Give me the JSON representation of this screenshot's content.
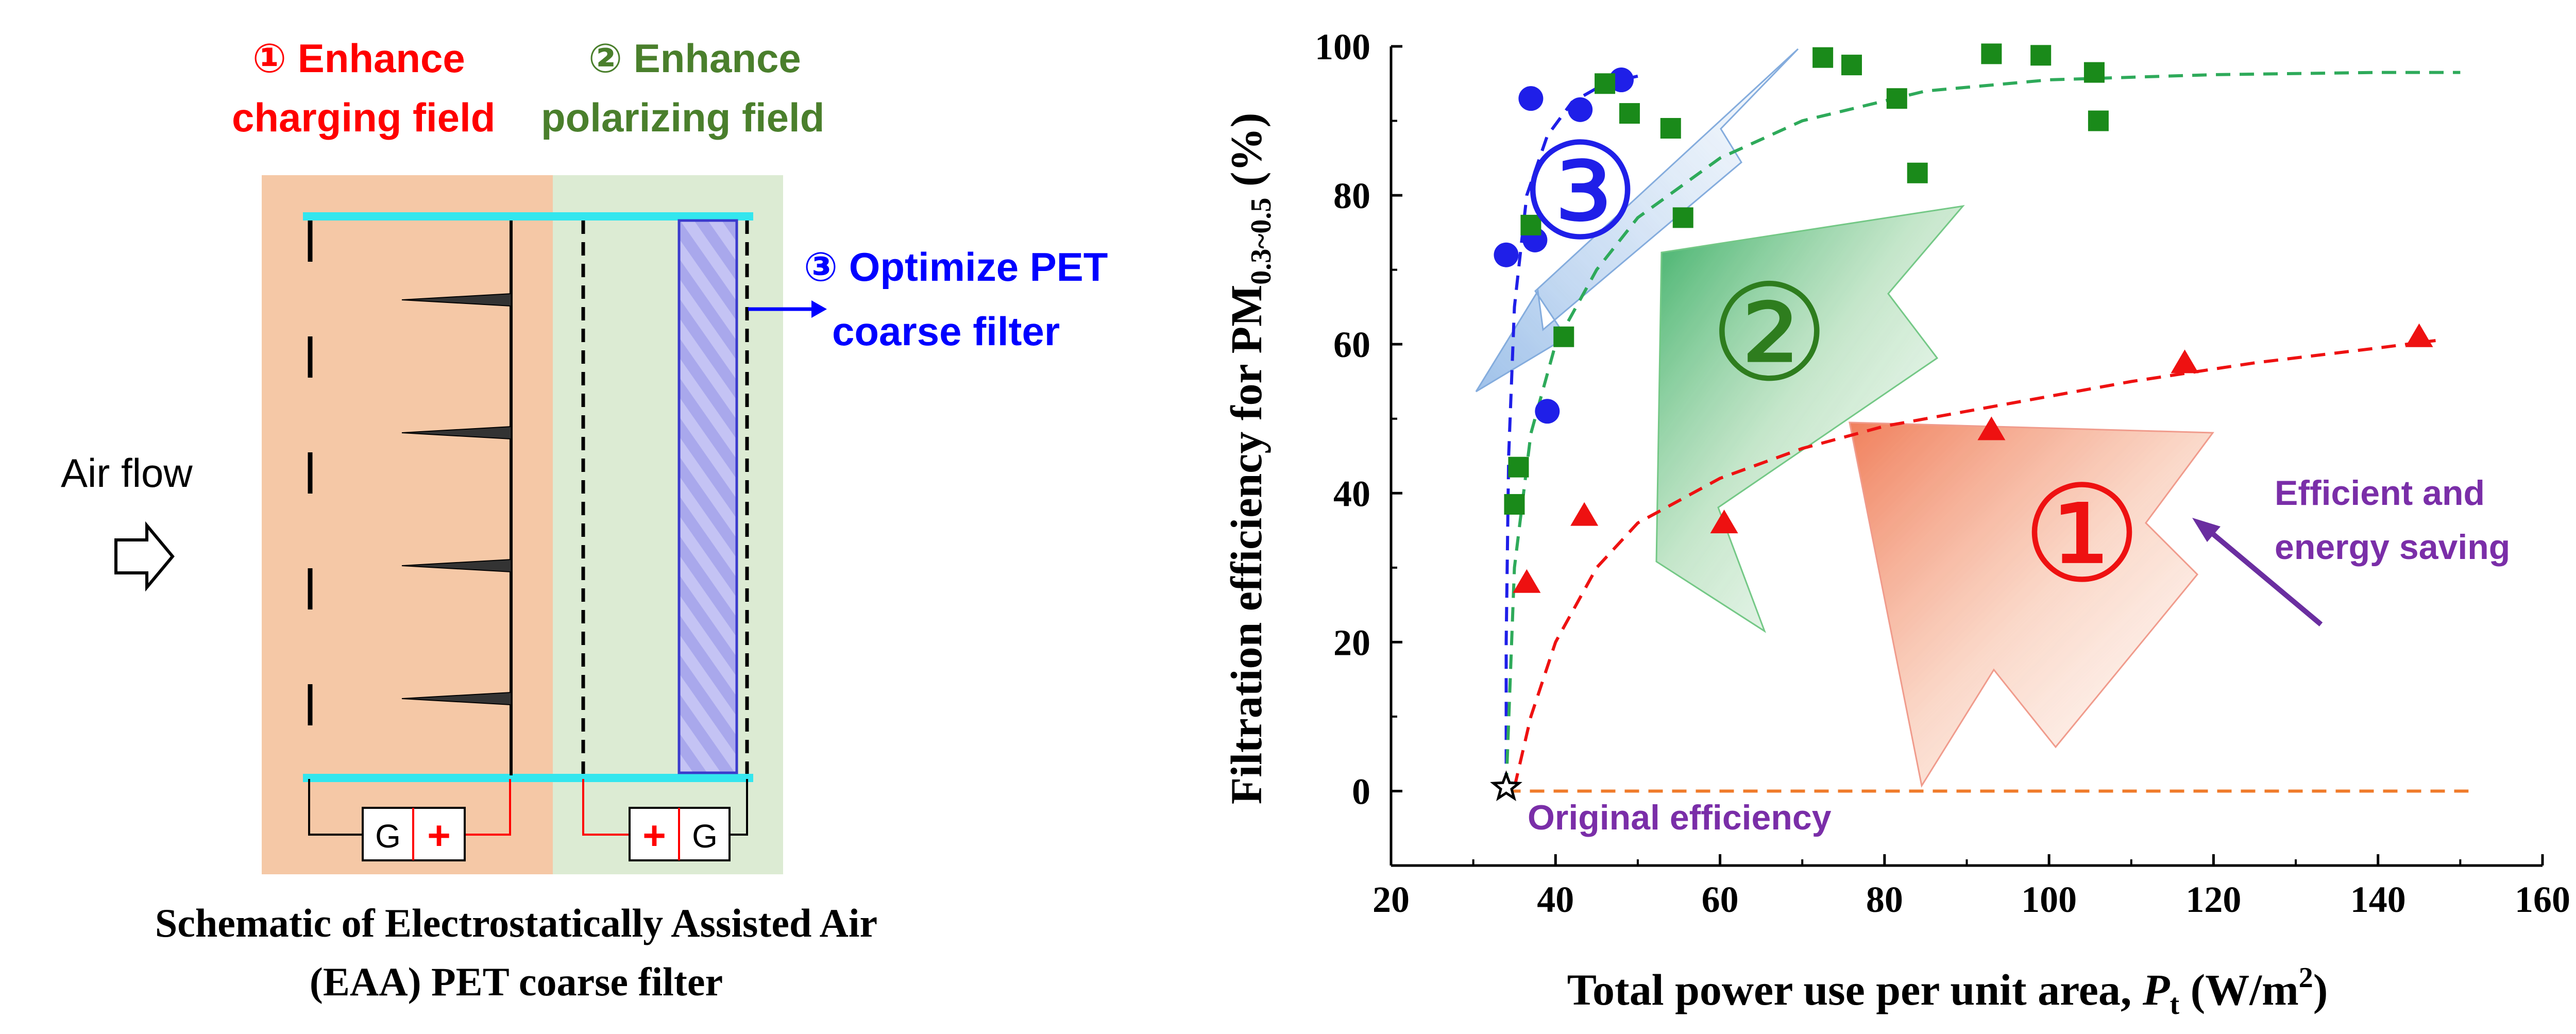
{
  "schematic": {
    "label_1": "① Enhance",
    "label_1b": "charging field",
    "label_2": "② Enhance",
    "label_2b": "polarizing field",
    "label_3": "③ Optimize PET",
    "label_3b": "coarse filter",
    "air_flow": "Air flow",
    "supply_left_g": "G",
    "supply_left_plus": "+",
    "supply_right_plus": "+",
    "supply_right_g": "G",
    "caption_line1": "Schematic of Electrostatically Assisted Air",
    "caption_line2": "(EAA) PET coarse filter",
    "colors": {
      "charging_zone": "#f5c8a6",
      "polarizing_zone": "#dcebd3",
      "electrode_bar": "#33e6ee",
      "red_text": "#ff0000",
      "green_text": "#4a7f2c",
      "blue_text": "#0000ff",
      "filter_fill": "#a9a8ec"
    }
  },
  "chart_data": {
    "type": "scatter",
    "xlabel_main": "Total power use per unit area, ",
    "xlabel_var": "P",
    "xlabel_sub": "t",
    "xlabel_unit": " (W/m",
    "xlabel_sup": "2",
    "xlabel_close": ")",
    "ylabel_main": "Filtration efficiency for PM",
    "ylabel_sub": "0.3~0.5",
    "ylabel_unit": " (%)",
    "xlim": [
      20,
      160
    ],
    "ylim": [
      -10,
      100
    ],
    "xticks": [
      20,
      40,
      60,
      80,
      100,
      120,
      140,
      160
    ],
    "yticks": [
      0,
      20,
      40,
      60,
      80,
      100
    ],
    "origin_point": {
      "x": 34,
      "y": 0.5,
      "label": "Original efficiency"
    },
    "baseline": {
      "x": [
        34,
        151
      ],
      "y": [
        0,
        0
      ]
    },
    "series": [
      {
        "name": "circles",
        "marker": "circle",
        "color": "#1f1fe8",
        "points": [
          [
            34,
            72
          ],
          [
            37,
            93
          ],
          [
            43,
            91.5
          ],
          [
            48,
            95.5
          ],
          [
            37.5,
            74
          ],
          [
            39,
            51
          ]
        ],
        "fit": [
          [
            34,
            0.5
          ],
          [
            34,
            20
          ],
          [
            34.3,
            45
          ],
          [
            35,
            65
          ],
          [
            36.5,
            80
          ],
          [
            39,
            88
          ],
          [
            42,
            92.5
          ],
          [
            46,
            95
          ],
          [
            50,
            96
          ]
        ]
      },
      {
        "name": "squares",
        "marker": "square",
        "color": "#1a8a1a",
        "points": [
          [
            35,
            38.5
          ],
          [
            35.5,
            43.5
          ],
          [
            37,
            76
          ],
          [
            41,
            61
          ],
          [
            46,
            95
          ],
          [
            49,
            91
          ],
          [
            54,
            89
          ],
          [
            55.5,
            77
          ],
          [
            72.5,
            98.5
          ],
          [
            76,
            97.5
          ],
          [
            81.5,
            93
          ],
          [
            84,
            83
          ],
          [
            93,
            99
          ],
          [
            99,
            98.8
          ],
          [
            105.5,
            96.5
          ],
          [
            106,
            90
          ]
        ]
      },
      {
        "name": "green fit",
        "color": "#2eaa5a",
        "fit": [
          [
            34,
            0.5
          ],
          [
            35,
            30
          ],
          [
            37,
            48
          ],
          [
            40,
            60
          ],
          [
            45,
            70
          ],
          [
            50,
            77
          ],
          [
            60,
            85
          ],
          [
            70,
            90
          ],
          [
            85,
            94
          ],
          [
            100,
            95.5
          ],
          [
            120,
            96.2
          ],
          [
            140,
            96.5
          ],
          [
            150,
            96.5
          ]
        ]
      },
      {
        "name": "triangles",
        "marker": "triangle",
        "color": "#ee1111",
        "points": [
          [
            36.5,
            28
          ],
          [
            43.5,
            37
          ],
          [
            60.5,
            36
          ],
          [
            93,
            48.5
          ],
          [
            116.5,
            57.5
          ],
          [
            145,
            61
          ]
        ],
        "fit": [
          [
            35,
            0.5
          ],
          [
            37,
            10
          ],
          [
            40,
            20
          ],
          [
            45,
            30
          ],
          [
            50,
            36
          ],
          [
            60,
            42
          ],
          [
            70,
            46
          ],
          [
            80,
            49
          ],
          [
            95,
            52
          ],
          [
            110,
            55
          ],
          [
            125,
            57.5
          ],
          [
            140,
            59.5
          ],
          [
            147,
            60.5
          ]
        ]
      }
    ],
    "badges": [
      {
        "text": "③",
        "x": 43,
        "y": 79,
        "color": "#1f1fe8"
      },
      {
        "text": "②",
        "x": 66,
        "y": 60,
        "color": "#2e7d1e"
      },
      {
        "text": "①",
        "x": 104,
        "y": 33,
        "color": "#ee1111"
      }
    ],
    "annotation": {
      "line1": "Efficient and",
      "line2": "energy saving",
      "color": "#7a2ea8"
    }
  }
}
